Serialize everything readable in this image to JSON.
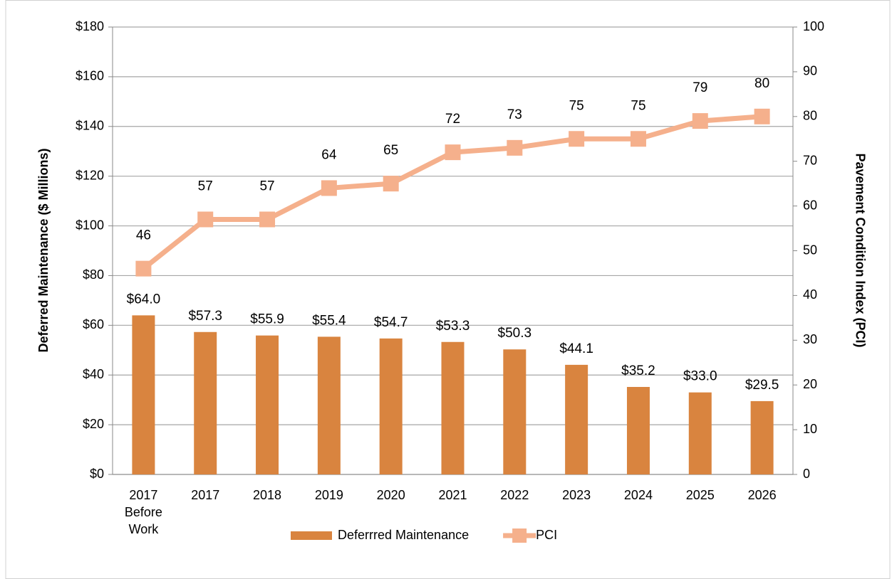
{
  "chart_data": {
    "type": "bar-line",
    "categories": [
      "2017\nBefore\nWork",
      "2017",
      "2018",
      "2019",
      "2020",
      "2021",
      "2022",
      "2023",
      "2024",
      "2025",
      "2026"
    ],
    "y_label": "Deferred Maintenance ($ Millions)",
    "y2_label": "Pavement Condition Index (PCI)",
    "ylim": [
      0,
      180
    ],
    "yticks": [
      {
        "value": 0,
        "label": "$0"
      },
      {
        "value": 20,
        "label": "$20"
      },
      {
        "value": 40,
        "label": "$40"
      },
      {
        "value": 60,
        "label": "$60"
      },
      {
        "value": 80,
        "label": "$80"
      },
      {
        "value": 100,
        "label": "$100"
      },
      {
        "value": 120,
        "label": "$120"
      },
      {
        "value": 140,
        "label": "$140"
      },
      {
        "value": 160,
        "label": "$160"
      },
      {
        "value": 180,
        "label": "$180"
      }
    ],
    "y2lim": [
      0,
      100
    ],
    "y2ticks": [
      0,
      10,
      20,
      30,
      40,
      50,
      60,
      70,
      80,
      90,
      100
    ],
    "grid": true,
    "legend": "bottom",
    "series": [
      {
        "name": "Deferrred Maintenance",
        "type": "bar",
        "color": "#d9843f",
        "values": [
          64.0,
          57.3,
          55.9,
          55.4,
          54.7,
          53.3,
          50.3,
          44.1,
          35.2,
          33.0,
          29.5
        ],
        "value_labels": [
          "$64.0",
          "$57.3",
          "$55.9",
          "$55.4",
          "$54.7",
          "$53.3",
          "$50.3",
          "$44.1",
          "$35.2",
          "$33.0",
          "$29.5"
        ]
      },
      {
        "name": "PCI",
        "type": "line",
        "axis": "y2",
        "color": "#f5b08c",
        "values": [
          46,
          57,
          57,
          64,
          65,
          72,
          73,
          75,
          75,
          79,
          80
        ]
      }
    ]
  }
}
